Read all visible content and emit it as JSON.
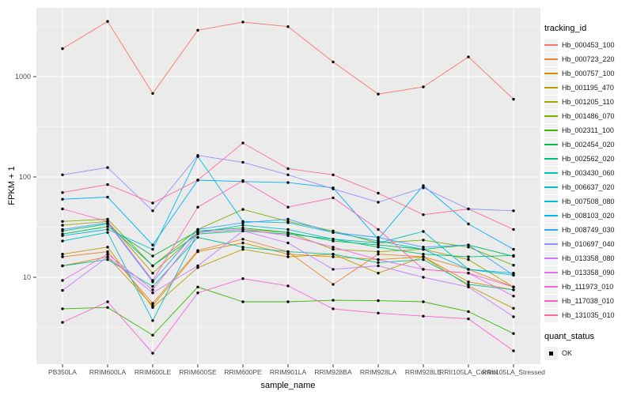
{
  "chart_data": {
    "type": "line",
    "title": "",
    "xlabel": "sample_name",
    "ylabel": "FPKM + 1",
    "x_categories": [
      "PB350LA",
      "RRIM600LA",
      "RRIM600LE",
      "RRIM600SE",
      "RRIM600PE",
      "RRIM901LA",
      "RRIM928BA",
      "RRIM928LA",
      "RRIM928LE",
      "RRII105LA_Control",
      "RRII105LA_Stressed"
    ],
    "y_scale": "log10",
    "y_ticks": [
      10,
      100,
      1000
    ],
    "y_minor_ticks": [
      3.162,
      31.62,
      316.2,
      3162
    ],
    "ylim_approx": [
      1.4,
      4800
    ],
    "panel_bg": "#EBEBEB",
    "grid_color": "#FFFFFF",
    "point_color": "#000000",
    "tick_label_color": "#4D4D4D",
    "series": [
      {
        "name": "Hb_000453_100",
        "color": "#F8766D",
        "values": [
          1900,
          3550,
          680,
          2900,
          3500,
          3150,
          1400,
          670,
          790,
          1570,
          595
        ]
      },
      {
        "name": "Hb_000723_220",
        "color": "#EA8331",
        "values": [
          16,
          18,
          5.5,
          18.5,
          24,
          18,
          8.5,
          17,
          16,
          12,
          8
        ]
      },
      {
        "name": "Hb_000757_100",
        "color": "#D89000",
        "values": [
          13,
          16,
          5.2,
          18,
          22,
          17,
          16,
          15,
          16,
          9,
          7.5
        ]
      },
      {
        "name": "Hb_001195_470",
        "color": "#C09B00",
        "values": [
          17,
          20,
          5.0,
          12.5,
          19,
          16,
          17,
          11,
          16,
          8.2,
          4.9
        ]
      },
      {
        "name": "Hb_001205_110",
        "color": "#A3A500",
        "values": [
          33,
          36,
          11,
          28,
          30,
          28,
          19,
          18,
          19,
          15,
          8
        ]
      },
      {
        "name": "Hb_001486_070",
        "color": "#7CAE00",
        "values": [
          36,
          38,
          13,
          30,
          47.5,
          36,
          29,
          22,
          23.5,
          20,
          13.2
        ]
      },
      {
        "name": "Hb_002311_100",
        "color": "#39B600",
        "values": [
          4.85,
          5.0,
          2.65,
          8,
          5.7,
          5.7,
          5.9,
          5.85,
          5.7,
          4.55,
          2.75
        ]
      },
      {
        "name": "Hb_002454_020",
        "color": "#00BB4E",
        "values": [
          27,
          32,
          16.3,
          29,
          31,
          28,
          23,
          21,
          19,
          21,
          16.2
        ]
      },
      {
        "name": "Hb_002562_020",
        "color": "#00BF7D",
        "values": [
          29,
          34,
          13,
          27,
          29,
          27,
          24,
          20,
          17,
          16,
          16.5
        ]
      },
      {
        "name": "Hb_003430_060",
        "color": "#00C1A3",
        "values": [
          13,
          15,
          8.1,
          25,
          20,
          18,
          17,
          14,
          15,
          8.5,
          7.5
        ]
      },
      {
        "name": "Hb_006637_020",
        "color": "#00BFC4",
        "values": [
          23,
          28,
          3.7,
          28,
          33,
          30,
          24,
          22,
          28.6,
          12,
          10.5
        ]
      },
      {
        "name": "Hb_007508_080",
        "color": "#00BAE0",
        "values": [
          26,
          30,
          19,
          160,
          36,
          35,
          28,
          23,
          19,
          12,
          11
        ]
      },
      {
        "name": "Hb_008103_020",
        "color": "#00B0F6",
        "values": [
          60,
          63,
          21,
          93,
          90,
          88,
          78,
          24,
          82,
          34,
          19
        ]
      },
      {
        "name": "Hb_008749_030",
        "color": "#35A2FF",
        "values": [
          30,
          35,
          9,
          30,
          35,
          38,
          28,
          25,
          20,
          21,
          10.5
        ]
      },
      {
        "name": "Hb_010697_040",
        "color": "#9590FF",
        "values": [
          105,
          124,
          46,
          164,
          140,
          105,
          76,
          56,
          78,
          48,
          46
        ]
      },
      {
        "name": "Hb_013358_080",
        "color": "#C77CFF",
        "values": [
          7.4,
          16,
          7.0,
          13,
          29,
          22,
          12,
          13,
          10,
          8,
          4.05
        ]
      },
      {
        "name": "Hb_013358_090",
        "color": "#E76BF3",
        "values": [
          9.3,
          17,
          7.5,
          28,
          30,
          26,
          20,
          15,
          12,
          11,
          6.5
        ]
      },
      {
        "name": "Hb_111973_010",
        "color": "#FA62DB",
        "values": [
          3.55,
          5.7,
          1.75,
          7.0,
          9.7,
          8.2,
          4.85,
          4.4,
          4.1,
          3.85,
          1.85
        ]
      },
      {
        "name": "Hb_117038_010",
        "color": "#FF62BC",
        "values": [
          48,
          36,
          9.3,
          50,
          92,
          50,
          62,
          30,
          12,
          11,
          8
        ]
      },
      {
        "name": "Hb_131035_010",
        "color": "#FF6A98",
        "values": [
          70,
          84,
          55,
          93,
          218,
          121,
          105,
          69,
          42,
          48,
          30
        ]
      }
    ]
  },
  "legend": {
    "tracking_title": "tracking_id",
    "quant_title": "quant_status",
    "quant_items": [
      {
        "label": "OK"
      }
    ]
  }
}
